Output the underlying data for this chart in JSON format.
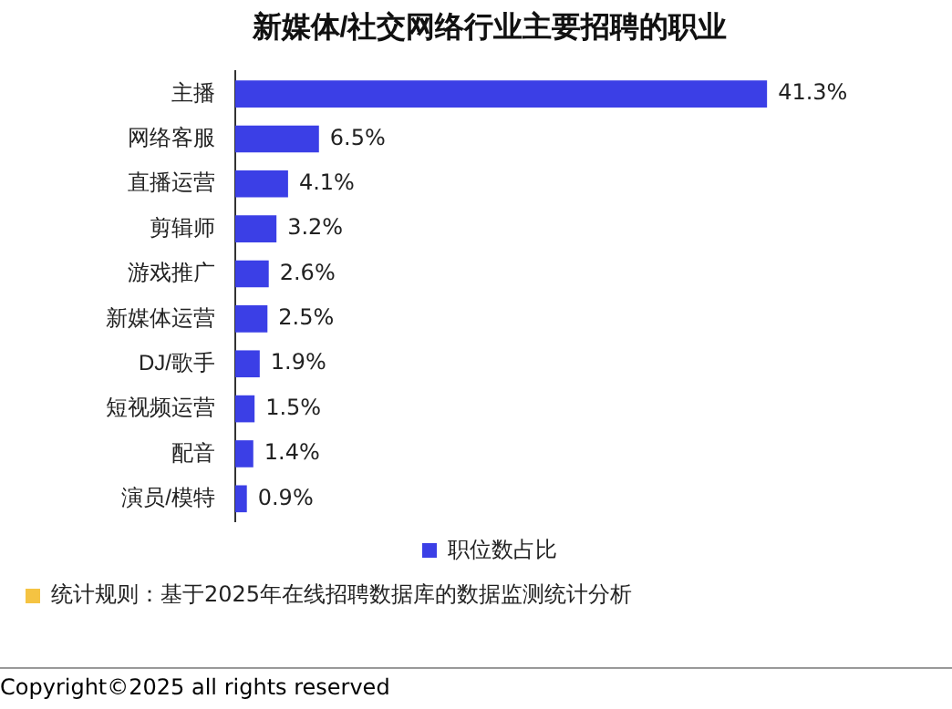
{
  "chart_data": {
    "type": "bar",
    "orientation": "horizontal",
    "title": "新媒体/社交网络行业主要招聘的职业",
    "categories": [
      "主播",
      "网络客服",
      "直播运营",
      "剪辑师",
      "游戏推广",
      "新媒体运营",
      "DJ/歌手",
      "短视频运营",
      "配音",
      "演员/模特"
    ],
    "series": [
      {
        "name": "职位数占比",
        "color": "#3b3fe6",
        "values": [
          41.3,
          6.5,
          4.1,
          3.2,
          2.6,
          2.5,
          1.9,
          1.5,
          1.4,
          0.9
        ],
        "value_labels": [
          "41.3%",
          "6.5%",
          "4.1%",
          "3.2%",
          "2.6%",
          "2.5%",
          "1.9%",
          "1.5%",
          "1.4%",
          "0.9%"
        ]
      }
    ],
    "legend": "bottom",
    "annotations": [
      "统计规则：基于2025年在线招聘数据库的数据监测统计分析",
      "Copyright©2025 all rights reserved"
    ]
  }
}
